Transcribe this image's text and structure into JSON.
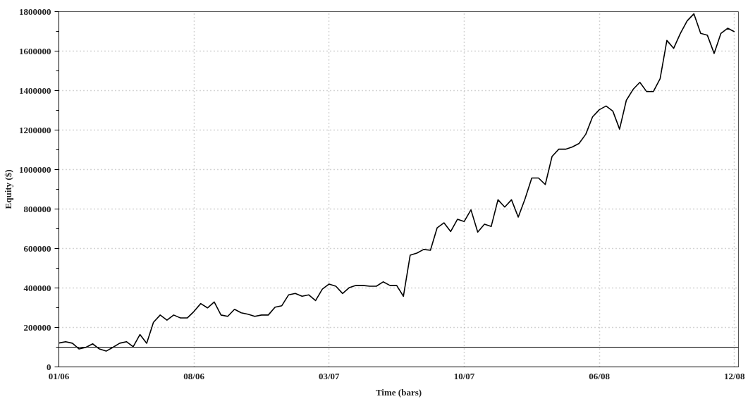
{
  "chart_data": {
    "type": "line",
    "xlabel": "Time (bars)",
    "ylabel": "Equity ($)",
    "categories": [
      "01/06",
      null,
      null,
      null,
      null,
      null,
      null,
      null,
      null,
      null,
      null,
      null,
      null,
      null,
      null,
      null,
      null,
      null,
      null,
      null,
      "08/06",
      null,
      null,
      null,
      null,
      null,
      null,
      null,
      null,
      null,
      null,
      null,
      null,
      null,
      null,
      null,
      null,
      null,
      null,
      null,
      "03/07",
      null,
      null,
      null,
      null,
      null,
      null,
      null,
      null,
      null,
      null,
      null,
      null,
      null,
      null,
      null,
      null,
      null,
      null,
      null,
      "10/07",
      null,
      null,
      null,
      null,
      null,
      null,
      null,
      null,
      null,
      null,
      null,
      null,
      null,
      null,
      null,
      null,
      null,
      null,
      null,
      "06/08",
      null,
      null,
      null,
      null,
      null,
      null,
      null,
      null,
      null,
      null,
      null,
      null,
      null,
      null,
      null,
      null,
      null,
      null,
      null,
      "12/08"
    ],
    "ylim": [
      0,
      1800000
    ],
    "yticks": [
      0,
      200000,
      400000,
      600000,
      800000,
      1000000,
      1200000,
      1400000,
      1600000,
      1800000
    ],
    "grid": true,
    "marker": "none",
    "line_style": "solid",
    "ref_lines": [
      {
        "axis": "y",
        "value": 100000,
        "color": "#000000"
      }
    ],
    "series": [
      {
        "color": "#000000",
        "values": [
          121000,
          128000,
          120000,
          91000,
          99000,
          117000,
          91000,
          80000,
          99000,
          120000,
          128000,
          102000,
          164000,
          120000,
          226000,
          263000,
          237000,
          263000,
          248000,
          248000,
          281000,
          321000,
          299000,
          329000,
          263000,
          256000,
          292000,
          274000,
          267000,
          256000,
          263000,
          263000,
          303000,
          310000,
          365000,
          372000,
          358000,
          365000,
          336000,
          394000,
          420000,
          409000,
          372000,
          402000,
          413000,
          413000,
          409000,
          409000,
          431000,
          413000,
          413000,
          358000,
          566000,
          577000,
          595000,
          591000,
          705000,
          730000,
          686000,
          748000,
          737000,
          796000,
          683000,
          723000,
          712000,
          847000,
          810000,
          847000,
          759000,
          851000,
          957000,
          957000,
          924000,
          1066000,
          1103000,
          1103000,
          1114000,
          1132000,
          1179000,
          1267000,
          1303000,
          1322000,
          1296000,
          1205000,
          1351000,
          1406000,
          1442000,
          1395000,
          1395000,
          1460000,
          1654000,
          1614000,
          1690000,
          1753000,
          1789000,
          1690000,
          1680000,
          1588000,
          1690000,
          1716000,
          1698000
        ]
      }
    ]
  }
}
